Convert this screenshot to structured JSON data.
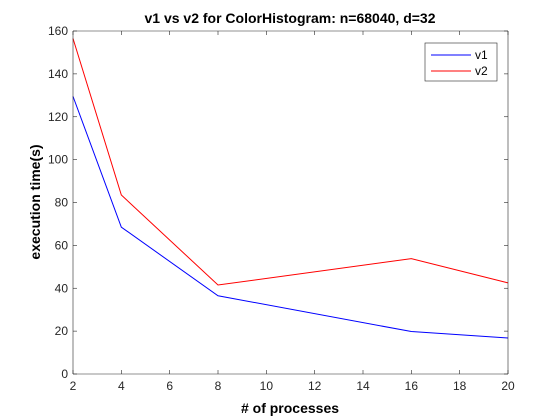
{
  "chart_data": {
    "type": "line",
    "title": "v1 vs v2 for ColorHistogram: n=68040, d=32",
    "xlabel": "# of processes",
    "ylabel": "execution time(s)",
    "xlim": [
      2,
      20
    ],
    "ylim": [
      0,
      160
    ],
    "xticks": [
      2,
      4,
      6,
      8,
      10,
      12,
      14,
      16,
      18,
      20
    ],
    "yticks": [
      0,
      20,
      40,
      60,
      80,
      100,
      120,
      140,
      160
    ],
    "grid": false,
    "legend_position": "top-right",
    "x": [
      2,
      4,
      8,
      16,
      20
    ],
    "series": [
      {
        "name": "v1",
        "color": "#0000ff",
        "values": [
          129.5,
          68.5,
          36.5,
          19.8,
          16.8
        ]
      },
      {
        "name": "v2",
        "color": "#ff0000",
        "values": [
          156.5,
          83.5,
          41.5,
          53.8,
          42.5
        ]
      }
    ]
  }
}
